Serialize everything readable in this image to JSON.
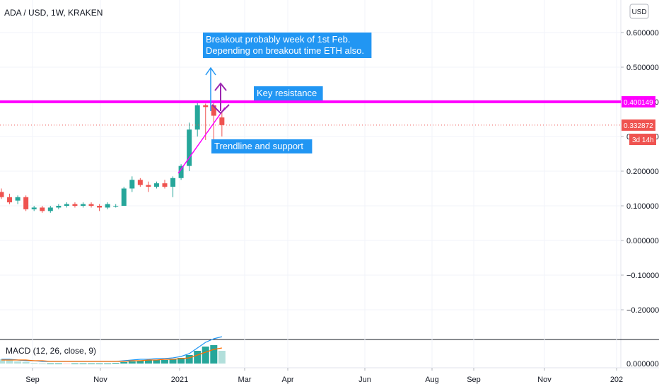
{
  "header": {
    "symbol": "ADA / USD, 1W, KRAKEN",
    "currency_button": "USD"
  },
  "annotations": {
    "breakout_line1": "Breakout probably week of 1st Feb.",
    "breakout_line2": "Depending on breakout time ETH also.",
    "key_resistance": "Key resistance",
    "trendline": "Trendline and support"
  },
  "price_badges": {
    "resistance": "0.400149",
    "last": "0.332872",
    "countdown": "3d 14h"
  },
  "colors": {
    "up": "#26a69a",
    "down": "#ef5350",
    "resistance": "#ff00ff",
    "arrow_blue": "#2196f3",
    "arrow_purple": "#9c27b0",
    "label_bg": "#2196f3",
    "macd_line": "#2196f3",
    "signal_line": "#ff6d00"
  },
  "chart_data": {
    "type": "candlestick",
    "y_axis": {
      "ticks": [
        "0.600000",
        "0.500000",
        "0.400000",
        "0.300000",
        "0.200000",
        "0.100000",
        "0.000000",
        "−0.100000",
        "−0.200000"
      ],
      "ylim": [
        -0.3,
        0.65
      ]
    },
    "x_axis": {
      "ticks": [
        "Sep",
        "Nov",
        "2021",
        "Mar",
        "Apr",
        "Jun",
        "Aug",
        "Sep",
        "Nov",
        "202"
      ]
    },
    "candles": [
      {
        "o": 0.14,
        "h": 0.15,
        "l": 0.12,
        "c": 0.125
      },
      {
        "o": 0.125,
        "h": 0.135,
        "l": 0.105,
        "c": 0.11
      },
      {
        "o": 0.115,
        "h": 0.13,
        "l": 0.105,
        "c": 0.125
      },
      {
        "o": 0.125,
        "h": 0.13,
        "l": 0.085,
        "c": 0.09
      },
      {
        "o": 0.09,
        "h": 0.1,
        "l": 0.085,
        "c": 0.095
      },
      {
        "o": 0.095,
        "h": 0.1,
        "l": 0.08,
        "c": 0.085
      },
      {
        "o": 0.085,
        "h": 0.1,
        "l": 0.08,
        "c": 0.095
      },
      {
        "o": 0.095,
        "h": 0.105,
        "l": 0.09,
        "c": 0.1
      },
      {
        "o": 0.1,
        "h": 0.11,
        "l": 0.095,
        "c": 0.105
      },
      {
        "o": 0.105,
        "h": 0.11,
        "l": 0.095,
        "c": 0.1
      },
      {
        "o": 0.1,
        "h": 0.11,
        "l": 0.095,
        "c": 0.105
      },
      {
        "o": 0.105,
        "h": 0.11,
        "l": 0.095,
        "c": 0.1
      },
      {
        "o": 0.1,
        "h": 0.105,
        "l": 0.085,
        "c": 0.095
      },
      {
        "o": 0.095,
        "h": 0.11,
        "l": 0.09,
        "c": 0.105
      },
      {
        "o": 0.1,
        "h": 0.105,
        "l": 0.095,
        "c": 0.1
      },
      {
        "o": 0.1,
        "h": 0.155,
        "l": 0.1,
        "c": 0.15
      },
      {
        "o": 0.15,
        "h": 0.185,
        "l": 0.14,
        "c": 0.175
      },
      {
        "o": 0.175,
        "h": 0.18,
        "l": 0.155,
        "c": 0.16
      },
      {
        "o": 0.16,
        "h": 0.17,
        "l": 0.14,
        "c": 0.155
      },
      {
        "o": 0.155,
        "h": 0.17,
        "l": 0.15,
        "c": 0.165
      },
      {
        "o": 0.165,
        "h": 0.175,
        "l": 0.15,
        "c": 0.155
      },
      {
        "o": 0.155,
        "h": 0.185,
        "l": 0.125,
        "c": 0.18
      },
      {
        "o": 0.18,
        "h": 0.22,
        "l": 0.175,
        "c": 0.215
      },
      {
        "o": 0.215,
        "h": 0.34,
        "l": 0.2,
        "c": 0.32
      },
      {
        "o": 0.32,
        "h": 0.4,
        "l": 0.3,
        "c": 0.39
      },
      {
        "o": 0.39,
        "h": 0.395,
        "l": 0.29,
        "c": 0.385
      },
      {
        "o": 0.39,
        "h": 0.4,
        "l": 0.27,
        "c": 0.36
      },
      {
        "o": 0.355,
        "h": 0.37,
        "l": 0.3,
        "c": 0.333
      }
    ],
    "resistance_level": 0.400149,
    "last_price": 0.332872,
    "macd": {
      "label": "MACD (12, 26, close, 9)",
      "tick": "0.000000"
    }
  }
}
